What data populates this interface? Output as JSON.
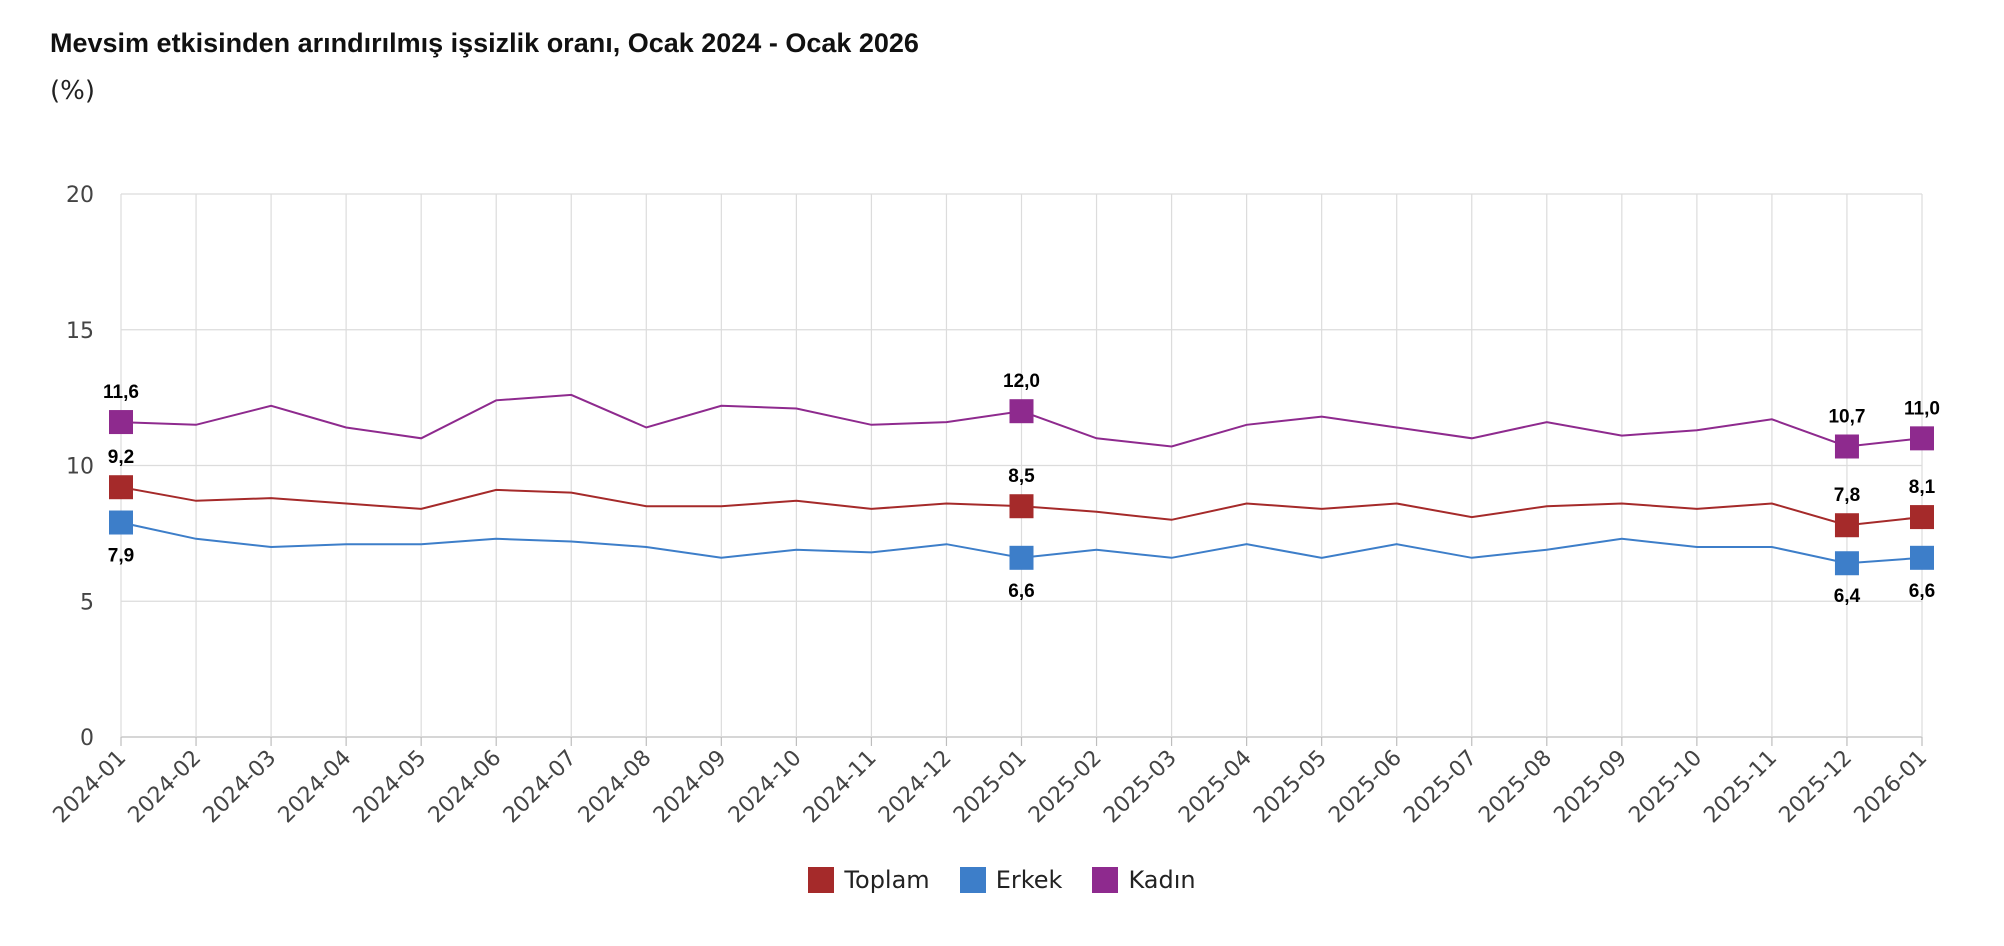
{
  "chart_data": {
    "type": "line",
    "title": "Mevsim etkisinden arındırılmış işsizlik oranı, Ocak 2024 - Ocak 2026",
    "subtitle": "(%)",
    "ylim": [
      0,
      20
    ],
    "yticks": [
      "0",
      "5",
      "10",
      "15",
      "20"
    ],
    "grid": true,
    "legend_position": "bottom",
    "categories": [
      "2024-01",
      "2024-02",
      "2024-03",
      "2024-04",
      "2024-05",
      "2024-06",
      "2024-07",
      "2024-08",
      "2024-09",
      "2024-10",
      "2024-11",
      "2024-12",
      "2025-01",
      "2025-02",
      "2025-03",
      "2025-04",
      "2025-05",
      "2025-06",
      "2025-07",
      "2025-08",
      "2025-09",
      "2025-10",
      "2025-11",
      "2025-12",
      "2026-01"
    ],
    "series": [
      {
        "name": "Toplam",
        "color": "#a52a2a",
        "values": [
          9.2,
          8.7,
          8.8,
          8.6,
          8.4,
          9.1,
          9.0,
          8.5,
          8.5,
          8.7,
          8.4,
          8.6,
          8.5,
          8.3,
          8.0,
          8.6,
          8.4,
          8.6,
          8.1,
          8.5,
          8.6,
          8.4,
          8.6,
          7.8,
          8.1
        ],
        "labels": {
          "0": "9,2",
          "12": "8,5",
          "23": "7,8",
          "24": "8,1"
        },
        "label_side": "above"
      },
      {
        "name": "Erkek",
        "color": "#3d7ec9",
        "values": [
          7.9,
          7.3,
          7.0,
          7.1,
          7.1,
          7.3,
          7.2,
          7.0,
          6.6,
          6.9,
          6.8,
          7.1,
          6.6,
          6.9,
          6.6,
          7.1,
          6.6,
          7.1,
          6.6,
          6.9,
          7.3,
          7.0,
          7.0,
          6.4,
          6.6
        ],
        "labels": {
          "0": "7,9",
          "12": "6,6",
          "23": "6,4",
          "24": "6,6"
        },
        "label_side": "below"
      },
      {
        "name": "Kadın",
        "color": "#8e2a8e",
        "values": [
          11.6,
          11.5,
          12.2,
          11.4,
          11.0,
          12.4,
          12.6,
          11.4,
          12.2,
          12.1,
          11.5,
          11.6,
          12.0,
          11.0,
          10.7,
          11.5,
          11.8,
          11.4,
          11.0,
          11.6,
          11.1,
          11.3,
          11.7,
          10.7,
          11.0
        ],
        "labels": {
          "0": "11,6",
          "12": "12,0",
          "23": "10,7",
          "24": "11,0"
        },
        "label_side": "above"
      }
    ]
  }
}
